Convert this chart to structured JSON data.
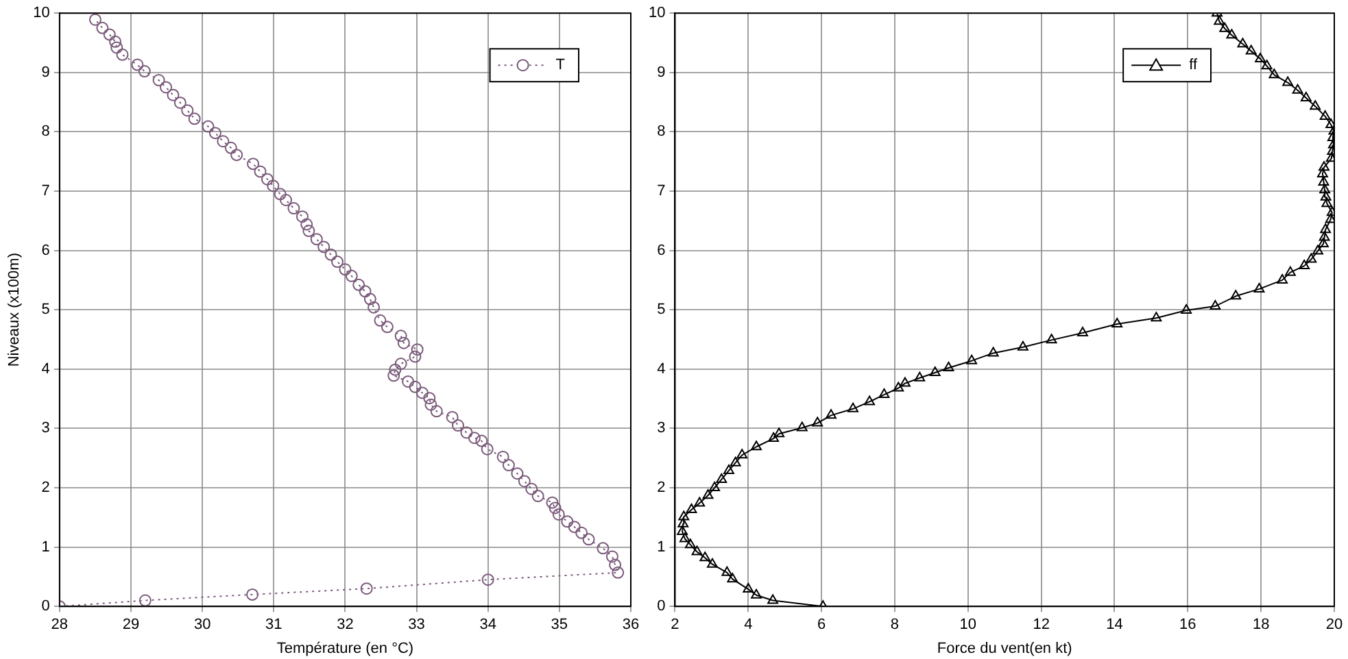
{
  "chart_data": [
    {
      "type": "line",
      "xlabel": "Température (en °C)",
      "ylabel": "Niveaux (x100m)",
      "xlim": [
        28,
        36
      ],
      "ylim": [
        0,
        10
      ],
      "xticks": [
        28,
        29,
        30,
        31,
        32,
        33,
        34,
        35,
        36
      ],
      "yticks": [
        0,
        1,
        2,
        3,
        4,
        5,
        6,
        7,
        8,
        9,
        10
      ],
      "grid": true,
      "legend": "top right",
      "marker": "circle",
      "line_style": "dotted",
      "series": [
        {
          "name": "T",
          "color": "#7a5a7a",
          "x": [
            28,
            29.2,
            30.7,
            32.3,
            34,
            35.82,
            35.78,
            35.74,
            35.61,
            35.41,
            35.31,
            35.21,
            35.11,
            34.99,
            34.94,
            34.9,
            34.7,
            34.61,
            34.51,
            34.41,
            34.29,
            34.21,
            33.99,
            33.91,
            33.81,
            33.7,
            33.58,
            33.5,
            33.28,
            33.2,
            33.18,
            33.08,
            32.98,
            32.88,
            32.68,
            32.7,
            32.78,
            32.98,
            33.01,
            32.82,
            32.78,
            32.59,
            32.49,
            32.4,
            32.35,
            32.28,
            32.19,
            32.09,
            32,
            31.89,
            31.8,
            31.7,
            31.6,
            31.49,
            31.46,
            31.4,
            31.28,
            31.17,
            31.09,
            30.99,
            30.91,
            30.81,
            30.71,
            30.48,
            30.4,
            30.29,
            30.18,
            30.08,
            29.89,
            29.79,
            29.69,
            29.59,
            29.49,
            29.39,
            29.19,
            29.09,
            28.88,
            28.8,
            28.78,
            28.7,
            28.6,
            28.5
          ],
          "values": [
            0,
            0.1,
            0.2,
            0.3,
            0.45,
            0.57,
            0.7,
            0.84,
            0.98,
            1.13,
            1.24,
            1.34,
            1.43,
            1.55,
            1.66,
            1.75,
            1.86,
            1.98,
            2.11,
            2.24,
            2.38,
            2.52,
            2.65,
            2.79,
            2.84,
            2.93,
            3.05,
            3.19,
            3.29,
            3.4,
            3.51,
            3.6,
            3.7,
            3.79,
            3.89,
            3.99,
            4.09,
            4.21,
            4.33,
            4.44,
            4.56,
            4.71,
            4.82,
            5.04,
            5.18,
            5.31,
            5.42,
            5.57,
            5.68,
            5.81,
            5.93,
            6.06,
            6.19,
            6.33,
            6.44,
            6.57,
            6.71,
            6.85,
            6.95,
            7.09,
            7.2,
            7.33,
            7.46,
            7.61,
            7.73,
            7.84,
            7.98,
            8.09,
            8.22,
            8.36,
            8.49,
            8.62,
            8.75,
            8.87,
            9.02,
            9.13,
            9.3,
            9.42,
            9.52,
            9.64,
            9.75,
            9.89
          ]
        }
      ]
    },
    {
      "type": "line",
      "xlabel": "Force du vent(en kt)",
      "xlim": [
        2,
        20
      ],
      "ylim": [
        0,
        10
      ],
      "xticks": [
        2,
        4,
        6,
        8,
        10,
        12,
        14,
        16,
        18,
        20
      ],
      "yticks": [
        0,
        1,
        2,
        3,
        4,
        5,
        6,
        7,
        8,
        9,
        10
      ],
      "grid": true,
      "legend": "top right",
      "marker": "triangle",
      "line_style": "solid",
      "series": [
        {
          "name": "ff",
          "color": "#000000",
          "x": [
            6.04,
            4.67,
            4.22,
            4,
            3.57,
            3.42,
            3.02,
            2.82,
            2.6,
            2.42,
            2.27,
            2.2,
            2.22,
            2.24,
            2.45,
            2.67,
            2.9,
            3.08,
            3.27,
            3.47,
            3.65,
            3.83,
            4.22,
            4.69,
            4.84,
            5.47,
            5.89,
            6.26,
            6.86,
            7.31,
            7.71,
            8.1,
            8.28,
            8.68,
            9.1,
            9.47,
            10.1,
            10.69,
            11.5,
            12.28,
            13.13,
            14.07,
            15.14,
            15.96,
            16.75,
            17.31,
            17.95,
            18.58,
            18.8,
            19.18,
            19.37,
            19.55,
            19.7,
            19.73,
            19.76,
            19.9,
            19.94,
            19.8,
            19.77,
            19.74,
            19.71,
            19.68,
            19.72,
            19.92,
            19.95,
            19.98,
            19.96,
            19.99,
            19.91,
            19.75,
            19.48,
            19.23,
            19,
            18.73,
            18.36,
            18.16,
            17.98,
            17.73,
            17.5,
            17.2,
            17.01,
            16.86,
            16.8
          ],
          "values": [
            0,
            0.1,
            0.19,
            0.29,
            0.46,
            0.57,
            0.71,
            0.82,
            0.92,
            1.04,
            1.14,
            1.26,
            1.39,
            1.51,
            1.63,
            1.74,
            1.87,
            2,
            2.14,
            2.29,
            2.42,
            2.55,
            2.69,
            2.83,
            2.91,
            3.01,
            3.09,
            3.22,
            3.33,
            3.45,
            3.57,
            3.68,
            3.76,
            3.85,
            3.94,
            4.02,
            4.14,
            4.27,
            4.37,
            4.49,
            4.61,
            4.76,
            4.86,
            4.99,
            5.06,
            5.23,
            5.35,
            5.5,
            5.63,
            5.74,
            5.85,
            5.99,
            6.11,
            6.22,
            6.35,
            6.52,
            6.64,
            6.79,
            6.9,
            7.02,
            7.15,
            7.29,
            7.4,
            7.55,
            7.67,
            7.78,
            7.9,
            8.01,
            8.12,
            8.26,
            8.43,
            8.57,
            8.7,
            8.83,
            8.96,
            9.11,
            9.23,
            9.36,
            9.48,
            9.63,
            9.74,
            9.86,
            10
          ]
        }
      ]
    }
  ]
}
